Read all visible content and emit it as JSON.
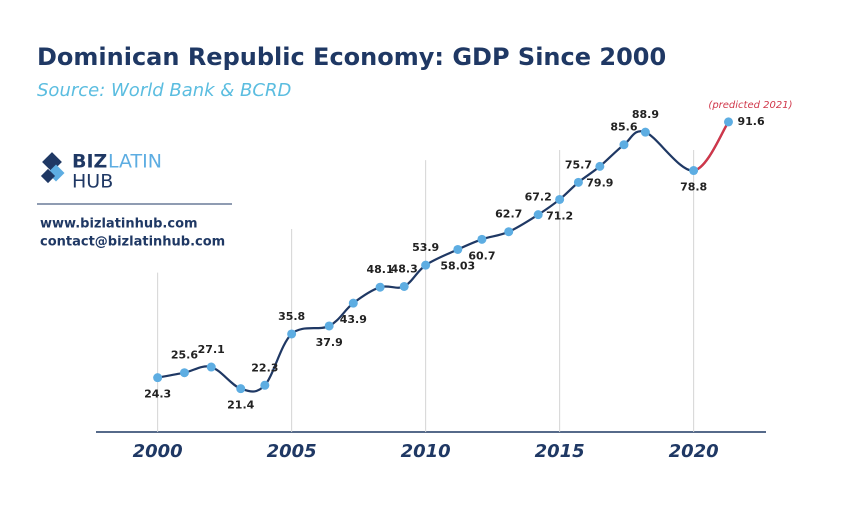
{
  "chart_data": {
    "type": "line",
    "title": "Dominican Republic Economy: GDP Since 2000",
    "subtitle": "Source: World Bank & BCRD",
    "annotation": "(predicted 2021)",
    "x": [
      2000,
      2001,
      2002,
      2003.1,
      2004,
      2005,
      2006.4,
      2007.3,
      2008.3,
      2009.2,
      2010,
      2011.2,
      2012.1,
      2013.1,
      2014.2,
      2015,
      2015.7,
      2016.5,
      2017.4,
      2018.2,
      2020,
      2021.3
    ],
    "y": [
      24.3,
      25.6,
      27.1,
      21.4,
      22.3,
      35.8,
      37.9,
      43.9,
      48.1,
      48.3,
      53.9,
      58.03,
      60.7,
      62.7,
      67.2,
      71.2,
      75.7,
      79.9,
      85.6,
      88.9,
      78.8,
      91.6
    ],
    "xlim": [
      1997.7,
      2022.7
    ],
    "xticks": [
      2000,
      2005,
      2010,
      2015,
      2020
    ],
    "ylim": [
      10,
      95
    ],
    "color": "#1f3864",
    "predicted_color": "#d0374a",
    "marker_color": "#5dade2",
    "grid": true
  },
  "logo": {
    "biz": "BIZ",
    "latin": "LATIN",
    "hub": "HUB"
  },
  "contact": {
    "website": "www.bizlatinhub.com",
    "email": "contact@bizlatinhub.com"
  }
}
